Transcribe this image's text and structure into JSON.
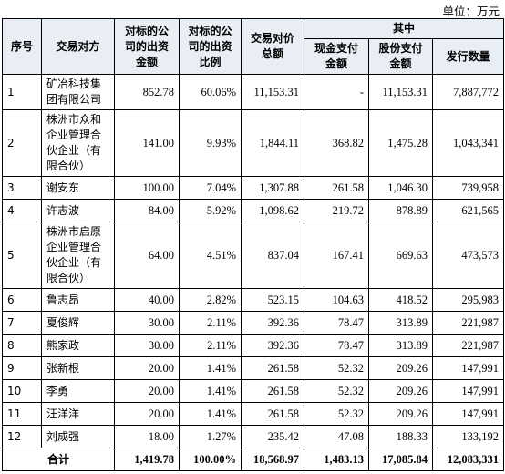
{
  "unit": "单位：万元",
  "table": {
    "headers": {
      "columns": [
        "序号",
        "交易对方",
        "对标的公司的出资金额",
        "对标的公司的出资比例",
        "交易对价总额"
      ],
      "group": "其中",
      "sub": [
        "现金支付金额",
        "股份支付金额",
        "发行数量"
      ]
    },
    "rows": [
      [
        "1",
        "矿冶科技集团有限公司",
        "852.78",
        "60.06%",
        "11,153.31",
        "-",
        "11,153.31",
        "7,887,772"
      ],
      [
        "2",
        "株洲市众和企业管理合伙企业（有限合伙）",
        "141.00",
        "9.93%",
        "1,844.11",
        "368.82",
        "1,475.28",
        "1,043,341"
      ],
      [
        "3",
        "谢安东",
        "100.00",
        "7.04%",
        "1,307.88",
        "261.58",
        "1,046.30",
        "739,958"
      ],
      [
        "4",
        "许志波",
        "84.00",
        "5.92%",
        "1,098.62",
        "219.72",
        "878.89",
        "621,565"
      ],
      [
        "5",
        "株洲市启原企业管理合伙企业（有限合伙）",
        "64.00",
        "4.51%",
        "837.04",
        "167.41",
        "669.63",
        "473,573"
      ],
      [
        "6",
        "鲁志昂",
        "40.00",
        "2.82%",
        "523.15",
        "104.63",
        "418.52",
        "295,983"
      ],
      [
        "7",
        "夏俊辉",
        "30.00",
        "2.11%",
        "392.36",
        "78.47",
        "313.89",
        "221,987"
      ],
      [
        "8",
        "熊家政",
        "30.00",
        "2.11%",
        "392.36",
        "78.47",
        "313.89",
        "221,987"
      ],
      [
        "9",
        "张新根",
        "20.00",
        "1.41%",
        "261.58",
        "52.32",
        "209.26",
        "147,991"
      ],
      [
        "10",
        "李勇",
        "20.00",
        "1.41%",
        "261.58",
        "52.32",
        "209.26",
        "147,991"
      ],
      [
        "11",
        "汪洋洋",
        "20.00",
        "1.41%",
        "261.58",
        "52.32",
        "209.26",
        "147,991"
      ],
      [
        "12",
        "刘成强",
        "18.00",
        "1.27%",
        "235.42",
        "47.08",
        "188.33",
        "133,192"
      ]
    ],
    "total": {
      "label": "合计",
      "values": [
        "1,419.78",
        "100.00%",
        "18,568.97",
        "1,483.13",
        "17,085.84",
        "12,083,331"
      ]
    }
  }
}
